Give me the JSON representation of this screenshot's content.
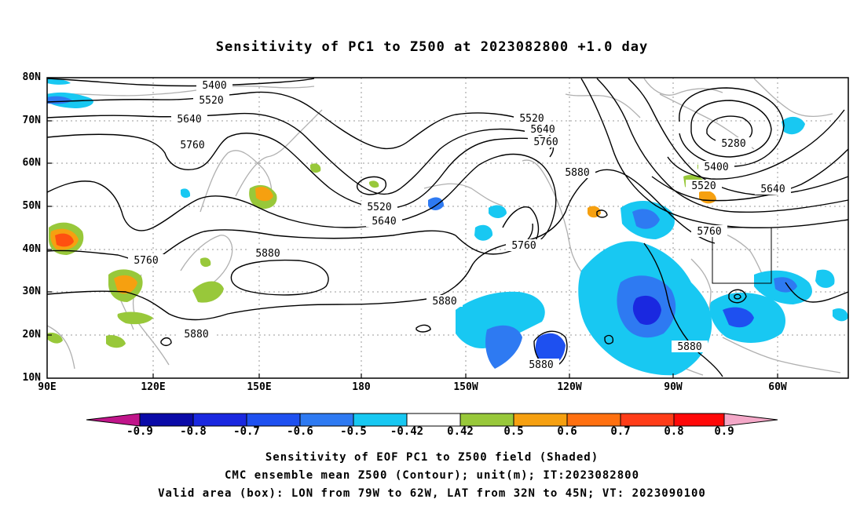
{
  "title": "Sensitivity of PC1 to Z500 at 2023082800 +1.0 day",
  "lat_labels": [
    "80N",
    "70N",
    "60N",
    "50N",
    "40N",
    "30N",
    "20N",
    "10N"
  ],
  "lon_labels": [
    "90E",
    "120E",
    "150E",
    "180",
    "150W",
    "120W",
    "90W",
    "60W"
  ],
  "contour_labels": [
    "5400",
    "5520",
    "5640",
    "5760",
    "5760",
    "5880",
    "5520",
    "5640",
    "5520",
    "5640",
    "5760",
    "5880",
    "5280",
    "5400",
    "5520",
    "5640",
    "5760",
    "5760",
    "5880",
    "5880",
    "5880",
    "5880"
  ],
  "colorbar": {
    "labels": [
      "-0.9",
      "-0.8",
      "-0.7",
      "-0.6",
      "-0.5",
      "-0.42",
      "0.42",
      "0.5",
      "0.6",
      "0.7",
      "0.8",
      "0.9"
    ],
    "colors": [
      "#c0158a",
      "#0a0aa8",
      "#1a28e0",
      "#1e50f0",
      "#2e7af2",
      "#1fa9f0",
      "#18c8f2",
      "#ffffff",
      "#98c83a",
      "#f6a010",
      "#ff7010",
      "#ff3c18",
      "#ff0808",
      "#f4a8c8"
    ]
  },
  "captions": [
    "Sensitivity of EOF PC1 to Z500 field (Shaded)",
    "CMC ensemble mean Z500 (Contour); unit(m); IT:2023082800",
    "Valid area (box): LON from 79W to 62W, LAT from 32N to 45N; VT: 2023090100"
  ]
}
